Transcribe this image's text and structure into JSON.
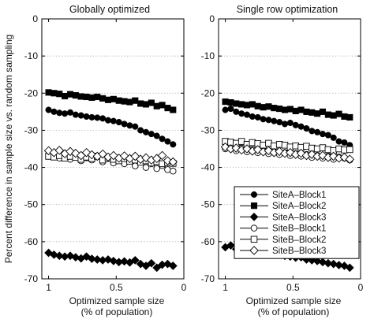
{
  "figure": {
    "ylabel": "Percent difference in sample size vs. random sampling"
  },
  "chart_data": [
    {
      "type": "scatter",
      "title": "Globally optimized",
      "xlabel_line1": "Optimized sample size",
      "xlabel_line2": "(% of population)",
      "ylabel": "Percent difference in sample size vs. random sampling",
      "xlim": [
        1.05,
        0
      ],
      "x_reversed": true,
      "ylim": [
        -70,
        0
      ],
      "x_ticks": [
        1,
        0.5,
        0
      ],
      "x_tick_labels": [
        "1",
        "0.5",
        "0"
      ],
      "y_ticks": [
        0,
        -10,
        -20,
        -30,
        -40,
        -50,
        -60,
        -70
      ],
      "y_tick_labels": [
        "0",
        "-10",
        "-20",
        "-30",
        "-40",
        "-50",
        "-60",
        "-70"
      ],
      "grid": "horizontal-dotted",
      "x": [
        1.0,
        0.96,
        0.92,
        0.88,
        0.84,
        0.8,
        0.76,
        0.72,
        0.68,
        0.64,
        0.6,
        0.56,
        0.52,
        0.48,
        0.44,
        0.4,
        0.36,
        0.32,
        0.28,
        0.24,
        0.2,
        0.16,
        0.12,
        0.08
      ],
      "series": [
        {
          "name": "SiteA–Block1",
          "marker": "circle-filled",
          "values": [
            -24.5,
            -25.0,
            -25.3,
            -25.5,
            -25.2,
            -25.8,
            -26.0,
            -26.3,
            -26.5,
            -26.6,
            -26.8,
            -27.3,
            -27.5,
            -27.8,
            -28.3,
            -28.7,
            -29.0,
            -30.0,
            -30.5,
            -31.0,
            -31.5,
            -32.3,
            -33.0,
            -33.8
          ]
        },
        {
          "name": "SiteA–Block2",
          "marker": "square-filled",
          "values": [
            -19.8,
            -20.0,
            -20.2,
            -20.8,
            -20.3,
            -20.6,
            -20.9,
            -21.0,
            -21.2,
            -21.0,
            -21.4,
            -21.8,
            -21.6,
            -22.0,
            -22.2,
            -22.4,
            -22.0,
            -22.8,
            -23.0,
            -22.6,
            -23.5,
            -23.2,
            -24.0,
            -24.5
          ]
        },
        {
          "name": "SiteA–Block3",
          "marker": "diamond-filled",
          "values": [
            -63.0,
            -63.5,
            -63.8,
            -64.0,
            -63.8,
            -64.2,
            -64.5,
            -64.0,
            -64.6,
            -64.8,
            -65.0,
            -64.8,
            -65.2,
            -65.5,
            -65.3,
            -65.6,
            -65.0,
            -66.0,
            -66.5,
            -65.8,
            -67.0,
            -66.2,
            -66.0,
            -66.5
          ]
        },
        {
          "name": "SiteB–Block1",
          "marker": "circle-open",
          "values": [
            -37.0,
            -36.5,
            -37.5,
            -36.8,
            -37.8,
            -37.0,
            -38.2,
            -37.4,
            -38.0,
            -36.9,
            -38.5,
            -37.6,
            -38.8,
            -37.9,
            -39.0,
            -38.3,
            -39.6,
            -38.5,
            -40.0,
            -39.0,
            -40.3,
            -39.5,
            -40.6,
            -41.0
          ]
        },
        {
          "name": "SiteB–Block2",
          "marker": "square-open",
          "values": [
            -37.0,
            -37.2,
            -36.8,
            -37.5,
            -37.0,
            -37.3,
            -37.8,
            -37.2,
            -37.6,
            -37.0,
            -38.0,
            -37.5,
            -37.8,
            -38.2,
            -37.6,
            -38.3,
            -38.0,
            -38.6,
            -38.2,
            -38.8,
            -38.4,
            -39.0,
            -38.7,
            -38.9
          ]
        },
        {
          "name": "SiteB–Block3",
          "marker": "diamond-open",
          "values": [
            -35.5,
            -36.0,
            -35.4,
            -36.3,
            -35.7,
            -36.2,
            -36.8,
            -36.0,
            -36.6,
            -37.0,
            -36.4,
            -37.2,
            -36.8,
            -37.5,
            -36.9,
            -37.6,
            -37.0,
            -37.8,
            -37.4,
            -38.0,
            -37.6,
            -36.8,
            -38.2,
            -38.5
          ]
        }
      ]
    },
    {
      "type": "scatter",
      "title": "Single row optimization",
      "xlabel_line1": "Optimized sample size",
      "xlabel_line2": "(% of population)",
      "xlim": [
        1.05,
        0
      ],
      "x_reversed": true,
      "ylim": [
        -70,
        0
      ],
      "x_ticks": [
        1,
        0.5,
        0
      ],
      "x_tick_labels": [
        "1",
        "0.5",
        "0"
      ],
      "y_ticks": [
        0,
        -10,
        -20,
        -30,
        -40,
        -50,
        -60,
        -70
      ],
      "y_tick_labels": [
        "0",
        "-10",
        "-20",
        "-30",
        "-40",
        "-50",
        "-60",
        "-70"
      ],
      "grid": "horizontal-dotted",
      "legend_position": "center-right",
      "x": [
        1.0,
        0.96,
        0.92,
        0.88,
        0.84,
        0.8,
        0.76,
        0.72,
        0.68,
        0.64,
        0.6,
        0.56,
        0.52,
        0.48,
        0.44,
        0.4,
        0.36,
        0.32,
        0.28,
        0.24,
        0.2,
        0.16,
        0.12,
        0.08
      ],
      "series": [
        {
          "name": "SiteA–Block1",
          "marker": "circle-filled",
          "values": [
            -24.5,
            -24.2,
            -25.0,
            -25.5,
            -25.8,
            -26.3,
            -26.5,
            -27.0,
            -27.2,
            -27.5,
            -27.8,
            -28.3,
            -28.0,
            -28.6,
            -29.0,
            -29.5,
            -30.2,
            -30.5,
            -31.0,
            -31.3,
            -32.0,
            -33.0,
            -33.3,
            -34.0
          ]
        },
        {
          "name": "SiteA–Block2",
          "marker": "square-filled",
          "values": [
            -22.3,
            -22.5,
            -22.8,
            -23.0,
            -23.2,
            -23.0,
            -23.5,
            -23.8,
            -23.6,
            -24.0,
            -24.2,
            -24.5,
            -24.3,
            -24.8,
            -24.5,
            -25.0,
            -25.2,
            -25.5,
            -25.0,
            -25.8,
            -26.0,
            -25.6,
            -26.3,
            -26.5
          ]
        },
        {
          "name": "SiteA–Block3",
          "marker": "diamond-filled",
          "values": [
            -61.5,
            -61.0,
            -62.0,
            -62.5,
            -62.3,
            -62.8,
            -63.0,
            -62.6,
            -63.2,
            -63.5,
            -63.0,
            -63.8,
            -64.0,
            -64.3,
            -64.2,
            -64.8,
            -65.0,
            -65.2,
            -65.5,
            -65.8,
            -66.0,
            -66.3,
            -66.5,
            -67.0
          ]
        },
        {
          "name": "SiteB–Block1",
          "marker": "circle-open",
          "values": [
            -35.0,
            -34.5,
            -35.5,
            -34.8,
            -35.8,
            -35.2,
            -36.0,
            -35.5,
            -36.3,
            -35.8,
            -36.5,
            -36.0,
            -36.8,
            -36.3,
            -37.0,
            -36.5,
            -37.3,
            -36.8,
            -37.5,
            -37.0,
            -37.8,
            -37.2,
            -37.5,
            -38.0
          ]
        },
        {
          "name": "SiteB–Block2",
          "marker": "square-open",
          "values": [
            -33.0,
            -33.2,
            -33.5,
            -33.0,
            -33.8,
            -33.3,
            -33.6,
            -34.0,
            -33.5,
            -34.2,
            -33.8,
            -34.0,
            -34.5,
            -34.2,
            -34.6,
            -34.3,
            -34.8,
            -35.0,
            -34.7,
            -35.2,
            -35.5,
            -35.0,
            -35.3,
            -35.2
          ]
        },
        {
          "name": "SiteB–Block3",
          "marker": "diamond-open",
          "values": [
            -34.5,
            -35.0,
            -34.8,
            -35.3,
            -35.0,
            -35.6,
            -35.2,
            -35.8,
            -35.5,
            -36.0,
            -35.7,
            -36.2,
            -36.0,
            -36.5,
            -36.2,
            -36.8,
            -36.5,
            -37.0,
            -36.8,
            -37.3,
            -37.0,
            -37.5,
            -37.3,
            -37.8
          ]
        }
      ]
    }
  ]
}
